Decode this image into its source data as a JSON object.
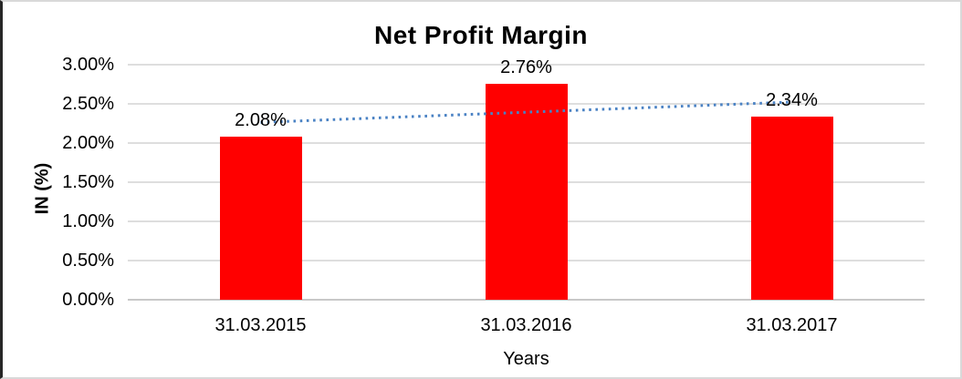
{
  "chart_data": {
    "type": "bar",
    "title": "Net Profit Margin",
    "xlabel": "Years",
    "ylabel": "IN (%)",
    "categories": [
      "31.03.2015",
      "31.03.2016",
      "31.03.2017"
    ],
    "values": [
      2.08,
      2.76,
      2.34
    ],
    "data_labels": [
      "2.08%",
      "2.76%",
      "2.34%"
    ],
    "ylim": [
      0,
      3
    ],
    "ytick_step": 0.5,
    "ytick_labels": [
      "0.00%",
      "0.50%",
      "1.00%",
      "1.50%",
      "2.00%",
      "2.50%",
      "3.00%"
    ],
    "grid": true,
    "legend": "none",
    "bar_color": "#FF0000",
    "gridline_color": "#DEDEDE",
    "axis_line_color": "#C8C8C8",
    "trendline": {
      "type": "linear",
      "style": "dotted",
      "color": "#4A82C4"
    }
  }
}
